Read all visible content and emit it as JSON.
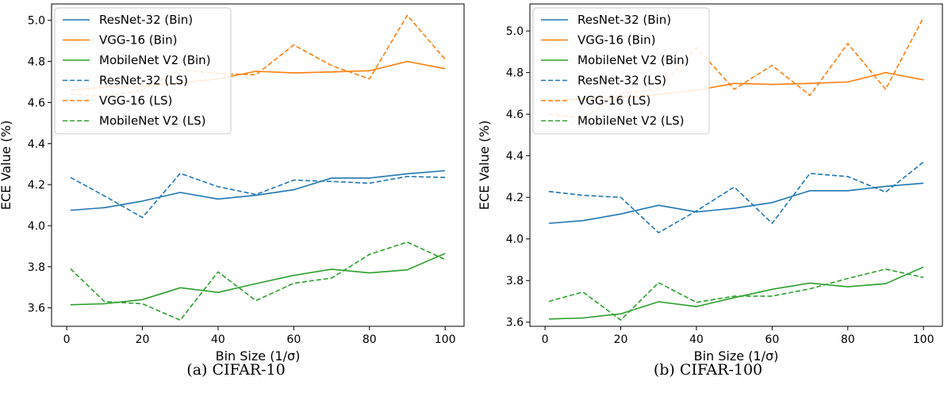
{
  "captions": [
    "(a)  CIFAR-10",
    "(b)  CIFAR-100"
  ],
  "colors": {
    "blue": "#1f77b4",
    "orange": "#ff7f0e",
    "green": "#2ca02c"
  },
  "chart_data": [
    {
      "type": "line",
      "title": "",
      "xlabel": "Bin Size (1/σ)",
      "ylabel": "ECE Value (%)",
      "xlim": [
        -4,
        105
      ],
      "ylim": [
        3.51,
        5.08
      ],
      "xticks": [
        0,
        20,
        40,
        60,
        80,
        100
      ],
      "yticks": [
        3.6,
        3.8,
        4.0,
        4.2,
        4.4,
        4.6,
        4.8,
        5.0
      ],
      "grid": false,
      "legend": "top-left",
      "x": [
        1,
        10,
        20,
        30,
        40,
        50,
        60,
        70,
        80,
        90,
        100
      ],
      "series": [
        {
          "name": "ResNet-32 (Bin)",
          "color": "#1f77b4",
          "style": "solid",
          "values": [
            4.075,
            4.088,
            4.12,
            4.162,
            4.13,
            4.148,
            4.175,
            4.232,
            4.232,
            4.253,
            4.268
          ]
        },
        {
          "name": "VGG-16 (Bin)",
          "color": "#ff7f0e",
          "style": "solid",
          "values": [
            4.66,
            4.675,
            4.68,
            4.695,
            4.715,
            4.752,
            4.744,
            4.749,
            4.755,
            4.8,
            4.765
          ]
        },
        {
          "name": "MobileNet V2 (Bin)",
          "color": "#2ca02c",
          "style": "solid",
          "values": [
            3.615,
            3.62,
            3.64,
            3.698,
            3.675,
            3.718,
            3.758,
            3.788,
            3.77,
            3.785,
            3.865
          ]
        },
        {
          "name": "ResNet-32 (LS)",
          "color": "#1f77b4",
          "style": "dashed",
          "values": [
            4.235,
            4.145,
            4.04,
            4.255,
            4.19,
            4.152,
            4.222,
            4.215,
            4.207,
            4.24,
            4.235
          ]
        },
        {
          "name": "VGG-16 (LS)",
          "color": "#ff7f0e",
          "style": "dashed",
          "values": [
            4.64,
            4.63,
            4.66,
            4.76,
            4.74,
            4.735,
            4.88,
            4.78,
            4.715,
            5.025,
            4.81
          ]
        },
        {
          "name": "MobileNet V2 (LS)",
          "color": "#2ca02c",
          "style": "dashed",
          "values": [
            3.79,
            3.63,
            3.62,
            3.54,
            3.775,
            3.635,
            3.72,
            3.745,
            3.86,
            3.92,
            3.835
          ]
        }
      ]
    },
    {
      "type": "line",
      "title": "",
      "xlabel": "Bin Size (1/σ)",
      "ylabel": "ECE Value (%)",
      "xlim": [
        -4,
        105
      ],
      "ylim": [
        3.58,
        5.13
      ],
      "xticks": [
        0,
        20,
        40,
        60,
        80,
        100
      ],
      "yticks": [
        3.6,
        3.8,
        4.0,
        4.2,
        4.4,
        4.6,
        4.8,
        5.0
      ],
      "grid": false,
      "legend": "top-left",
      "x": [
        1,
        10,
        20,
        30,
        40,
        50,
        60,
        70,
        80,
        90,
        100
      ],
      "series": [
        {
          "name": "ResNet-32 (Bin)",
          "color": "#1f77b4",
          "style": "solid",
          "values": [
            4.075,
            4.088,
            4.12,
            4.162,
            4.13,
            4.148,
            4.175,
            4.232,
            4.232,
            4.253,
            4.268
          ]
        },
        {
          "name": "VGG-16 (Bin)",
          "color": "#ff7f0e",
          "style": "solid",
          "values": [
            4.66,
            4.675,
            4.68,
            4.695,
            4.715,
            4.748,
            4.743,
            4.748,
            4.755,
            4.8,
            4.765
          ]
        },
        {
          "name": "MobileNet V2 (Bin)",
          "color": "#2ca02c",
          "style": "solid",
          "values": [
            3.615,
            3.62,
            3.64,
            3.698,
            3.675,
            3.718,
            3.758,
            3.788,
            3.77,
            3.785,
            3.865
          ]
        },
        {
          "name": "ResNet-32 (LS)",
          "color": "#1f77b4",
          "style": "dashed",
          "values": [
            4.228,
            4.21,
            4.2,
            4.03,
            4.135,
            4.25,
            4.075,
            4.315,
            4.3,
            4.225,
            4.37
          ]
        },
        {
          "name": "VGG-16 (LS)",
          "color": "#ff7f0e",
          "style": "dashed",
          "values": [
            4.6,
            4.58,
            4.7,
            4.72,
            4.92,
            4.72,
            4.835,
            4.69,
            4.94,
            4.72,
            5.065
          ]
        },
        {
          "name": "MobileNet V2 (LS)",
          "color": "#2ca02c",
          "style": "dashed",
          "values": [
            3.7,
            3.745,
            3.61,
            3.79,
            3.695,
            3.725,
            3.725,
            3.76,
            3.81,
            3.855,
            3.815
          ]
        }
      ]
    }
  ]
}
